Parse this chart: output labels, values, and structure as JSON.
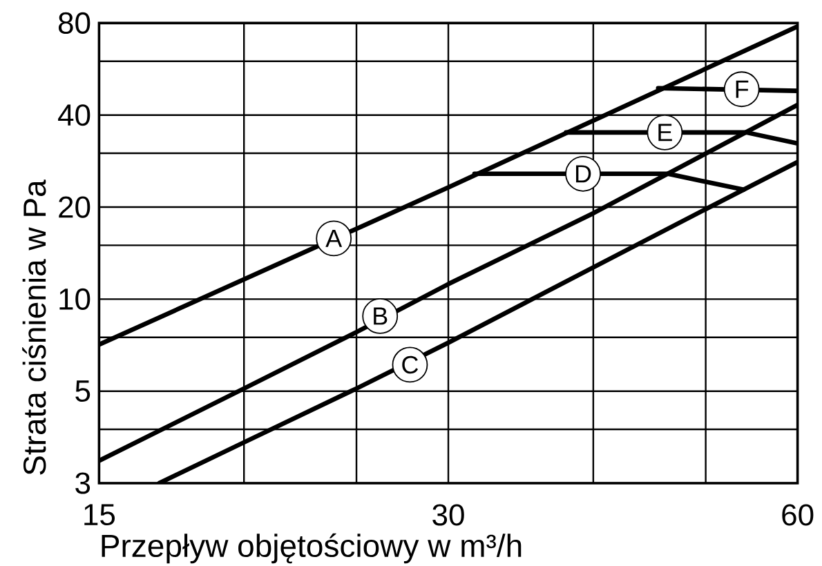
{
  "chart_data": {
    "type": "line",
    "xlabel": "Przepływ objętościowy w m³/h",
    "ylabel": "Strata ciśnienia w Pa",
    "log": "xy",
    "grid": true,
    "xlim": [
      15,
      60
    ],
    "ylim": [
      2.5,
      80
    ],
    "xticks": [
      15,
      {
        "value": 20,
        "label": null
      },
      {
        "value": 25,
        "label": null
      },
      30,
      {
        "value": 40,
        "label": null
      },
      {
        "value": 50,
        "label": null
      },
      60
    ],
    "yticks": [
      {
        "value": 2.5,
        "label": "3"
      },
      {
        "value": 3.75,
        "label": null
      },
      5,
      {
        "value": 7.5,
        "label": null
      },
      10,
      {
        "value": 15,
        "label": null
      },
      20,
      {
        "value": 30,
        "label": null
      },
      40,
      {
        "value": 60,
        "label": null
      },
      80
    ],
    "series": [
      {
        "color": "#000000",
        "x": [
          15,
          30,
          60
        ],
        "values": [
          7.1,
          23.2,
          78
        ]
      },
      {
        "color": "#000000",
        "x": [
          15,
          20,
          25,
          30,
          40,
          60
        ],
        "values": [
          2.96,
          5.1,
          7.8,
          11.2,
          19.1,
          43.2
        ]
      },
      {
        "color": "#000000",
        "x": [
          16.9,
          20,
          25,
          30,
          40,
          50,
          60
        ],
        "values": [
          2.5,
          3.4,
          5.1,
          7.2,
          12.7,
          19.7,
          28.1
        ]
      },
      {
        "color": "#000000",
        "x": [
          31.6,
          46.4,
          53.9
        ],
        "values": [
          25.7,
          25.7,
          22.8
        ]
      },
      {
        "color": "#000000",
        "x": [
          37.9,
          54.2,
          60
        ],
        "values": [
          35.1,
          35.1,
          32.3
        ]
      },
      {
        "color": "#000000",
        "x": [
          45.5,
          60
        ],
        "values": [
          49,
          48
        ]
      }
    ],
    "annotations": [
      {
        "text": "A",
        "x": 23.9,
        "y": 15.8
      },
      {
        "text": "B",
        "x": 26.2,
        "y": 8.8
      },
      {
        "text": "C",
        "x": 27.8,
        "y": 6.1
      },
      {
        "text": "D",
        "x": 39.2,
        "y": 25.7
      },
      {
        "text": "E",
        "x": 46.1,
        "y": 35.1
      },
      {
        "text": "F",
        "x": 53.7,
        "y": 48.6
      }
    ]
  }
}
